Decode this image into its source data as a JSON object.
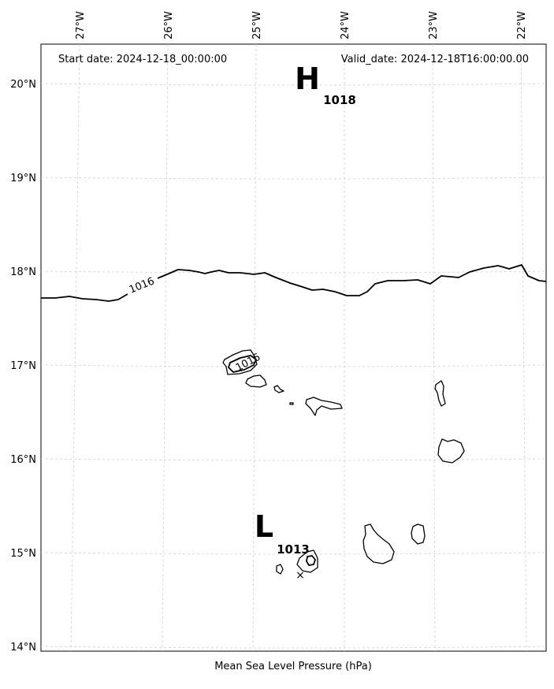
{
  "map": {
    "header": {
      "start_date": "Start date: 2024-12-18_00:00:00",
      "valid_date": "Valid_date: 2024-12-18T16:00:00.00"
    },
    "footer_label": "Mean Sea Level Pressure (hPa)",
    "longitude_ticks": [
      "27°W",
      "26°W",
      "25°W",
      "24°W",
      "23°W",
      "22°W"
    ],
    "latitude_ticks": [
      "20°N",
      "19°N",
      "18°N",
      "17°N",
      "16°N",
      "15°N",
      "14°N"
    ],
    "pressure_centers": [
      {
        "letter": "H",
        "value": "1018"
      },
      {
        "letter": "L",
        "value": "1013"
      }
    ],
    "contour_labels": [
      "1016",
      "1016"
    ],
    "low_marker": "×",
    "colors": {
      "contour": "#000000",
      "coastline": "#000000",
      "grid": "#d0d0d0"
    }
  }
}
